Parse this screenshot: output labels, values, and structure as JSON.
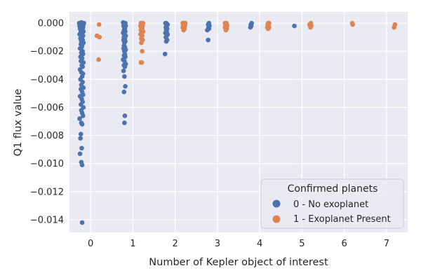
{
  "chart_data": {
    "type": "scatter",
    "xlabel": "Number of Kepler object of interest",
    "ylabel": "Q1 flux value",
    "xlim": [
      -0.5,
      7.5
    ],
    "ylim": [
      -0.0149,
      0.0008
    ],
    "x_ticks": [
      "0",
      "1",
      "2",
      "3",
      "4",
      "5",
      "6",
      "7"
    ],
    "y_ticks": [
      "0.000",
      "−0.002",
      "−0.004",
      "−0.006",
      "−0.008",
      "−0.010",
      "−0.012",
      "−0.014"
    ],
    "y_tick_values": [
      0,
      -0.002,
      -0.004,
      -0.006,
      -0.008,
      -0.01,
      -0.012,
      -0.014
    ],
    "grid": true,
    "legend": {
      "title": "Confirmed planets",
      "placement": "lower-right",
      "entries": [
        "0 - No exoplanet",
        "1 - Exoplanet Present"
      ]
    },
    "series": [
      {
        "name": "0 - No exoplanet",
        "color": "#4c72b0",
        "points": [
          [
            -0.2,
            -0.0142
          ],
          [
            -0.2,
            -0.0101
          ],
          [
            -0.22,
            -0.0099
          ],
          [
            -0.25,
            -0.0093
          ],
          [
            -0.21,
            -0.0089
          ],
          [
            -0.24,
            -0.0082
          ],
          [
            -0.23,
            -0.0079
          ],
          [
            -0.2,
            -0.0072
          ],
          [
            -0.22,
            -0.0071
          ],
          [
            -0.26,
            -0.0068
          ],
          [
            -0.18,
            -0.0066
          ],
          [
            -0.2,
            -0.0064
          ],
          [
            -0.22,
            -0.0062
          ],
          [
            -0.17,
            -0.006
          ],
          [
            -0.23,
            -0.0058
          ],
          [
            -0.19,
            -0.0056
          ],
          [
            -0.21,
            -0.0054
          ],
          [
            -0.25,
            -0.0052
          ],
          [
            -0.18,
            -0.0051
          ],
          [
            -0.2,
            -0.0049
          ],
          [
            -0.23,
            -0.0047
          ],
          [
            -0.17,
            -0.0046
          ],
          [
            -0.22,
            -0.0044
          ],
          [
            -0.19,
            -0.0042
          ],
          [
            -0.24,
            -0.004
          ],
          [
            -0.2,
            -0.0038
          ],
          [
            -0.18,
            -0.0036
          ],
          [
            -0.22,
            -0.0035
          ],
          [
            -0.25,
            -0.0033
          ],
          [
            -0.19,
            -0.0031
          ],
          [
            -0.21,
            -0.003
          ],
          [
            -0.17,
            -0.0028
          ],
          [
            -0.23,
            -0.0027
          ],
          [
            -0.2,
            -0.0025
          ],
          [
            -0.24,
            -0.0024
          ],
          [
            -0.18,
            -0.0022
          ],
          [
            -0.22,
            -0.0021
          ],
          [
            -0.19,
            -0.002
          ],
          [
            -0.25,
            -0.0018
          ],
          [
            -0.21,
            -0.0017
          ],
          [
            -0.2,
            -0.0016
          ],
          [
            -0.23,
            -0.0015
          ],
          [
            -0.17,
            -0.0014
          ],
          [
            -0.22,
            -0.0013
          ],
          [
            -0.19,
            -0.0012
          ],
          [
            -0.24,
            -0.0011
          ],
          [
            -0.21,
            -0.001
          ],
          [
            -0.18,
            -0.0009
          ],
          [
            -0.26,
            -0.0008
          ],
          [
            -0.2,
            -0.0007
          ],
          [
            -0.23,
            -0.0006
          ],
          [
            -0.17,
            -0.0006
          ],
          [
            -0.22,
            -0.0005
          ],
          [
            -0.19,
            -0.0005
          ],
          [
            -0.25,
            -0.0004
          ],
          [
            -0.21,
            -0.0004
          ],
          [
            -0.18,
            -0.0003
          ],
          [
            -0.24,
            -0.0003
          ],
          [
            -0.2,
            -0.0002
          ],
          [
            -0.26,
            -0.0002
          ],
          [
            -0.22,
            -0.0002
          ],
          [
            -0.17,
            -0.0001
          ],
          [
            -0.19,
            -0.0001
          ],
          [
            -0.23,
            -0.0001
          ],
          [
            -0.25,
            -5e-05
          ],
          [
            -0.21,
            -5e-05
          ],
          [
            -0.18,
            0.0
          ],
          [
            -0.2,
            0.0
          ],
          [
            -0.24,
            0.0
          ],
          [
            -0.16,
            0.0
          ],
          [
            -0.22,
            5e-05
          ],
          [
            -0.27,
            0.0
          ],
          [
            -0.2,
            -0.00015
          ],
          [
            -0.18,
            -0.00025
          ],
          [
            -0.23,
            -0.00035
          ],
          [
            0.8,
            -0.0071
          ],
          [
            0.81,
            -0.0066
          ],
          [
            0.79,
            -0.0049
          ],
          [
            0.82,
            -0.0045
          ],
          [
            0.8,
            -0.0038
          ],
          [
            0.78,
            -0.0034
          ],
          [
            0.81,
            -0.0031
          ],
          [
            0.79,
            -0.003
          ],
          [
            0.83,
            -0.0029
          ],
          [
            0.8,
            -0.0027
          ],
          [
            0.77,
            -0.0026
          ],
          [
            0.82,
            -0.0024
          ],
          [
            0.79,
            -0.0023
          ],
          [
            0.81,
            -0.0022
          ],
          [
            0.8,
            -0.002
          ],
          [
            0.83,
            -0.0019
          ],
          [
            0.78,
            -0.0018
          ],
          [
            0.81,
            -0.0017
          ],
          [
            0.79,
            -0.0016
          ],
          [
            0.8,
            -0.0014
          ],
          [
            0.82,
            -0.0013
          ],
          [
            0.78,
            -0.0012
          ],
          [
            0.81,
            -0.0011
          ],
          [
            0.79,
            -0.001
          ],
          [
            0.83,
            -0.0009
          ],
          [
            0.8,
            -0.0008
          ],
          [
            0.77,
            -0.0007
          ],
          [
            0.82,
            -0.0006
          ],
          [
            0.79,
            -0.0005
          ],
          [
            0.81,
            -0.0004
          ],
          [
            0.8,
            -0.0003
          ],
          [
            0.78,
            -0.0002
          ],
          [
            0.83,
            -0.0002
          ],
          [
            0.81,
            -0.0001
          ],
          [
            0.79,
            0.0
          ],
          [
            0.8,
            0.0
          ],
          [
            0.82,
            0.0
          ],
          [
            0.77,
            5e-05
          ],
          [
            1.76,
            -0.0022
          ],
          [
            1.79,
            -0.0013
          ],
          [
            1.81,
            -0.0012
          ],
          [
            1.78,
            -0.001
          ],
          [
            1.8,
            -0.0009
          ],
          [
            1.82,
            -0.0008
          ],
          [
            1.77,
            -0.0007
          ],
          [
            1.8,
            -0.0006
          ],
          [
            1.79,
            -0.0005
          ],
          [
            1.81,
            -0.0004
          ],
          [
            1.78,
            -0.0003
          ],
          [
            1.8,
            -0.0002
          ],
          [
            1.82,
            -0.0001
          ],
          [
            1.79,
            0.0
          ],
          [
            1.77,
            0.0
          ],
          [
            2.78,
            -0.0012
          ],
          [
            2.76,
            -0.0005
          ],
          [
            2.8,
            -0.0004
          ],
          [
            2.79,
            -0.0003
          ],
          [
            2.81,
            -0.0002
          ],
          [
            2.78,
            -0.0001
          ],
          [
            2.8,
            0.0
          ],
          [
            3.78,
            -0.0003
          ],
          [
            3.8,
            -0.0002
          ],
          [
            3.79,
            -0.0001
          ],
          [
            3.81,
            0.0
          ],
          [
            4.82,
            -0.0002
          ]
        ]
      },
      {
        "name": "1 - Exoplanet Present",
        "color": "#dd8452",
        "points": [
          [
            0.19,
            -0.0026
          ],
          [
            0.21,
            -0.001
          ],
          [
            0.15,
            -0.0009
          ],
          [
            0.2,
            -0.0001
          ],
          [
            1.21,
            -0.0028
          ],
          [
            1.19,
            -0.0028
          ],
          [
            1.22,
            -0.002
          ],
          [
            1.2,
            -0.0014
          ],
          [
            1.23,
            -0.0012
          ],
          [
            1.2,
            -0.0011
          ],
          [
            1.22,
            -0.0009
          ],
          [
            1.18,
            -0.0008
          ],
          [
            1.21,
            -0.0007
          ],
          [
            1.24,
            -0.0006
          ],
          [
            1.19,
            -0.0005
          ],
          [
            1.22,
            -0.0004
          ],
          [
            1.2,
            -0.0003
          ],
          [
            1.23,
            -0.0002
          ],
          [
            1.18,
            -0.0002
          ],
          [
            1.21,
            -0.0001
          ],
          [
            1.2,
            0.0
          ],
          [
            1.24,
            0.0
          ],
          [
            1.19,
            0.0
          ],
          [
            2.2,
            -0.0005
          ],
          [
            2.22,
            -0.0004
          ],
          [
            2.18,
            -0.0003
          ],
          [
            2.21,
            -0.0003
          ],
          [
            2.19,
            -0.0002
          ],
          [
            2.23,
            -0.0002
          ],
          [
            2.2,
            -0.0001
          ],
          [
            2.22,
            -0.0001
          ],
          [
            2.18,
            0.0
          ],
          [
            2.21,
            0.0
          ],
          [
            2.24,
            0.0
          ],
          [
            2.19,
            0.0
          ],
          [
            3.2,
            -0.0005
          ],
          [
            3.22,
            -0.0004
          ],
          [
            3.18,
            -0.0003
          ],
          [
            3.21,
            -0.0003
          ],
          [
            3.19,
            -0.0002
          ],
          [
            3.23,
            -0.0002
          ],
          [
            3.2,
            -0.0001
          ],
          [
            3.22,
            -0.0001
          ],
          [
            3.18,
            0.0
          ],
          [
            3.21,
            0.0
          ],
          [
            3.19,
            0.0
          ],
          [
            4.2,
            -0.0004
          ],
          [
            4.22,
            -0.0003
          ],
          [
            4.18,
            -0.0003
          ],
          [
            4.21,
            -0.0002
          ],
          [
            4.19,
            -0.0001
          ],
          [
            4.2,
            0.0
          ],
          [
            4.22,
            0.0
          ],
          [
            5.2,
            -0.0003
          ],
          [
            5.22,
            -0.0002
          ],
          [
            5.18,
            -0.0001
          ],
          [
            5.21,
            0.0
          ],
          [
            6.2,
            -0.0001
          ],
          [
            6.19,
            0.0
          ],
          [
            7.18,
            -0.0003
          ],
          [
            7.2,
            -0.0001
          ]
        ]
      }
    ]
  }
}
